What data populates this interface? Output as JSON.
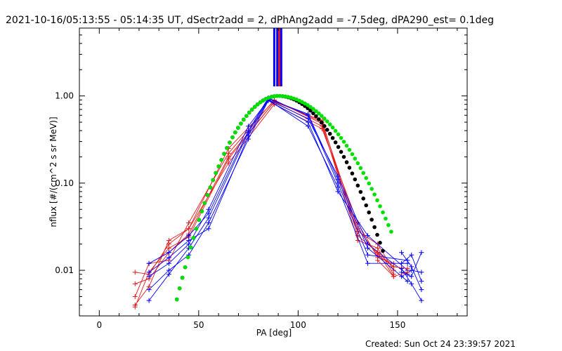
{
  "chart_data": {
    "type": "line",
    "title": "2021-10-16/05:13:55 - 05:14:35 UT, dSectr2add = 2, dPhAng2add = -7.5deg, dPA290_est=  0.1deg",
    "xlabel": "PA [deg]",
    "ylabel": "nflux [#/(cm^2 s sr MeV)]",
    "xlim": [
      -10,
      185
    ],
    "ylim": [
      0.003,
      6.0
    ],
    "yscale": "log",
    "xticks": [
      0,
      50,
      100,
      150
    ],
    "xtick_labels": [
      "0",
      "50",
      "100",
      "150"
    ],
    "yticks": [
      0.01,
      0.1,
      1.0
    ],
    "ytick_labels": [
      "0.01",
      "0.10",
      "1.00"
    ],
    "footer": "Created: Sun Oct 24 23:39:57 2021",
    "colors": {
      "red": "#e41a1c",
      "blue": "#0000ff",
      "green": "#00e000",
      "black": "#000000"
    },
    "vertical_markers": [
      {
        "x": 88.0,
        "color": "#0000ff"
      },
      {
        "x": 89.5,
        "color": "#0000ff"
      },
      {
        "x": 90.5,
        "color": "#e41a1c"
      },
      {
        "x": 91.5,
        "color": "#0000ff"
      }
    ],
    "fit_curves": [
      {
        "name": "green-fit",
        "color": "#00e000",
        "peak_x": 90,
        "peak_y": 1.0,
        "left_width": 22,
        "right_width": 30,
        "x_range": [
          39,
          148
        ]
      },
      {
        "name": "black-fit",
        "color": "#000000",
        "peak_x": 90,
        "peak_y": 1.0,
        "left_width": 22,
        "right_width": 26,
        "x_range": [
          39,
          143
        ]
      }
    ],
    "series": [
      {
        "name": "red-1",
        "color": "#e41a1c",
        "x": [
          18,
          25,
          35,
          45,
          65,
          88,
          112,
          130,
          140,
          148
        ],
        "y": [
          0.0095,
          0.009,
          0.02,
          0.03,
          0.25,
          0.88,
          0.5,
          0.03,
          0.015,
          0.011
        ]
      },
      {
        "name": "red-2",
        "color": "#e41a1c",
        "x": [
          18,
          25,
          35,
          45,
          65,
          88,
          112,
          130,
          140,
          148
        ],
        "y": [
          0.007,
          0.008,
          0.016,
          0.026,
          0.2,
          0.85,
          0.45,
          0.028,
          0.02,
          0.01
        ]
      },
      {
        "name": "red-3",
        "color": "#e41a1c",
        "x": [
          18,
          25,
          35,
          45,
          65,
          88,
          112,
          130,
          140,
          148
        ],
        "y": [
          0.005,
          0.012,
          0.013,
          0.035,
          0.22,
          0.9,
          0.48,
          0.022,
          0.018,
          0.009
        ]
      },
      {
        "name": "red-4",
        "color": "#e41a1c",
        "x": [
          18,
          25,
          35,
          45,
          65,
          88,
          112,
          130,
          140,
          148
        ],
        "y": [
          0.004,
          0.0065,
          0.022,
          0.03,
          0.17,
          0.8,
          0.42,
          0.035,
          0.014,
          0.012
        ]
      },
      {
        "name": "red-5",
        "color": "#e41a1c",
        "x": [
          18,
          25,
          35,
          45,
          65,
          88,
          112,
          130,
          140,
          148
        ],
        "y": [
          0.0038,
          0.0095,
          0.018,
          0.024,
          0.19,
          0.86,
          0.52,
          0.025,
          0.016,
          0.0085
        ]
      },
      {
        "name": "blue-1",
        "color": "#0000ff",
        "x": [
          25,
          35,
          45,
          55,
          75,
          85,
          105,
          120,
          135,
          155
        ],
        "y": [
          0.0085,
          0.012,
          0.02,
          0.05,
          0.45,
          0.9,
          0.55,
          0.12,
          0.02,
          0.009
        ]
      },
      {
        "name": "blue-2",
        "color": "#0000ff",
        "x": [
          25,
          35,
          45,
          55,
          75,
          85,
          105,
          120,
          135,
          155
        ],
        "y": [
          0.012,
          0.016,
          0.025,
          0.045,
          0.4,
          0.95,
          0.6,
          0.1,
          0.015,
          0.013
        ]
      },
      {
        "name": "blue-3",
        "color": "#0000ff",
        "x": [
          25,
          35,
          45,
          55,
          75,
          85,
          105,
          120,
          135,
          155
        ],
        "y": [
          0.006,
          0.01,
          0.015,
          0.035,
          0.32,
          0.88,
          0.5,
          0.08,
          0.025,
          0.01
        ]
      },
      {
        "name": "blue-4",
        "color": "#0000ff",
        "x": [
          25,
          35,
          45,
          55,
          75,
          85,
          105,
          120,
          135,
          155
        ],
        "y": [
          0.0045,
          0.009,
          0.018,
          0.04,
          0.38,
          0.92,
          0.62,
          0.11,
          0.018,
          0.0075
        ]
      },
      {
        "name": "blue-5",
        "color": "#0000ff",
        "x": [
          25,
          35,
          45,
          55,
          75,
          85,
          105,
          120,
          135,
          155
        ],
        "y": [
          0.0095,
          0.014,
          0.022,
          0.03,
          0.35,
          0.9,
          0.45,
          0.09,
          0.012,
          0.012
        ]
      }
    ],
    "outer_points": [
      {
        "name": "blue-right-a",
        "color": "#0000ff",
        "x": [
          152,
          157,
          162
        ],
        "y": [
          0.012,
          0.015,
          0.0075
        ]
      },
      {
        "name": "blue-right-b",
        "color": "#0000ff",
        "x": [
          152,
          157,
          162
        ],
        "y": [
          0.016,
          0.011,
          0.006
        ]
      },
      {
        "name": "blue-right-c",
        "color": "#0000ff",
        "x": [
          152,
          157,
          162
        ],
        "y": [
          0.0095,
          0.0085,
          0.016
        ]
      },
      {
        "name": "blue-right-d",
        "color": "#0000ff",
        "x": [
          152,
          157,
          162
        ],
        "y": [
          0.0105,
          0.007,
          0.0045
        ]
      },
      {
        "name": "blue-right-e",
        "color": "#0000ff",
        "x": [
          152,
          157,
          162
        ],
        "y": [
          0.0085,
          0.01,
          0.0095
        ]
      },
      {
        "name": "red-right-a",
        "color": "#e41a1c",
        "x": [
          140,
          148,
          155
        ],
        "y": [
          0.016,
          0.011,
          0.0105
        ]
      },
      {
        "name": "red-right-b",
        "color": "#e41a1c",
        "x": [
          140,
          148,
          155
        ],
        "y": [
          0.013,
          0.0085,
          0.0095
        ]
      }
    ]
  }
}
